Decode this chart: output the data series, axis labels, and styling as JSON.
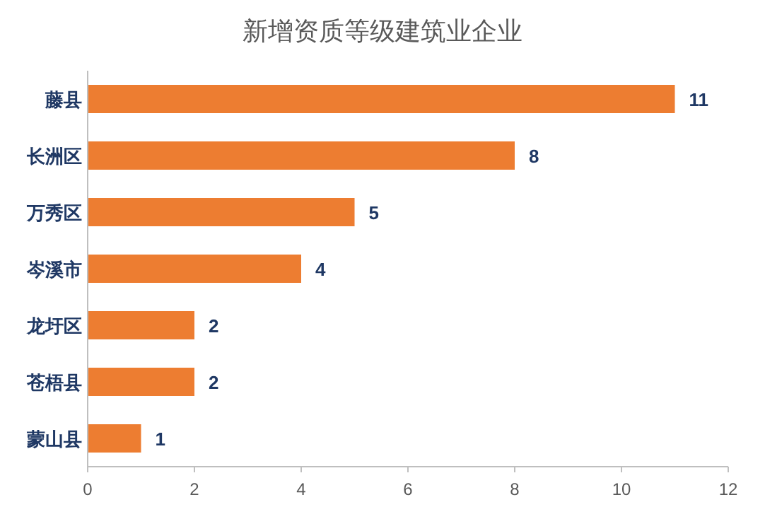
{
  "chart_data": {
    "type": "bar",
    "orientation": "horizontal",
    "title": "新增资质等级建筑业企业",
    "categories": [
      "藤县",
      "长洲区",
      "万秀区",
      "岑溪市",
      "龙圩区",
      "苍梧县",
      "蒙山县"
    ],
    "values": [
      11,
      8,
      5,
      4,
      2,
      2,
      1
    ],
    "color": "#ed7d31",
    "xlim": [
      0,
      12
    ],
    "xticks": [
      0,
      2,
      4,
      6,
      8,
      10,
      12
    ],
    "data_labels": true,
    "grid": false
  }
}
